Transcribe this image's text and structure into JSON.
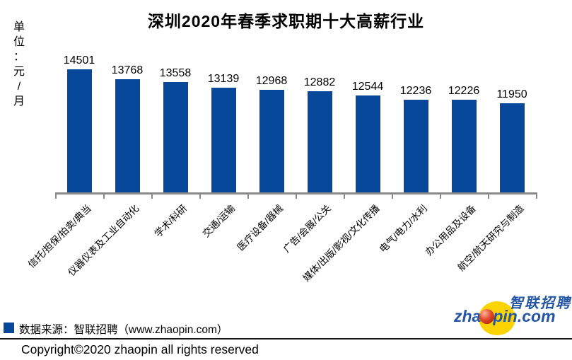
{
  "title": "深圳2020年春季求职期十大高薪行业",
  "unit_text": "单位：元/月",
  "unit_chars": [
    "单",
    "位",
    "：",
    "元",
    "/",
    "月"
  ],
  "chart_data": {
    "type": "bar",
    "title": "深圳2020年春季求职期十大高薪行业",
    "ylabel": "单位：元/月",
    "categories": [
      "信托/担保/拍卖/典当",
      "仪器仪表及工业自动化",
      "学术/科研",
      "交通/运输",
      "医疗设备/器械",
      "广告/会展/公关",
      "媒体/出版/影视/文化传播",
      "电气/电力/水利",
      "办公用品及设备",
      "航空/航天研究与制造"
    ],
    "values": [
      14501,
      13768,
      13558,
      13139,
      12968,
      12882,
      12544,
      12236,
      12226,
      11950
    ],
    "value_labels_shown": true,
    "bar_color": "#07489A",
    "axis_color": "#898989",
    "ylim": [
      5250,
      15000
    ],
    "grid": false,
    "legend_position": "bottom-left"
  },
  "source_note": {
    "marker_color": "#07489A",
    "text": "数据来源：智联招聘（www.zhaopin.com）"
  },
  "copyright": "Copyright©2020 zhaopin all rights reserved",
  "logo": {
    "cn_text": "智联招聘",
    "domain_prefix": "zha",
    "domain_suffix": "pin.com",
    "blue": "#2456A4",
    "yellow": "#FBD301",
    "red": "#C3210F"
  }
}
